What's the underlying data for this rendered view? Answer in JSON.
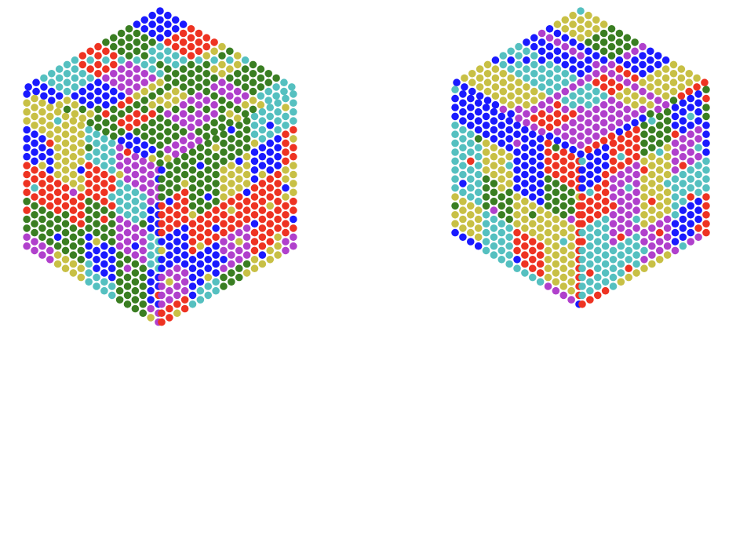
{
  "figures": [
    {
      "name": "left-hexagon-tiling",
      "palette": [
        "#1a1aff",
        "#ee3322",
        "#b040cc",
        "#c8c045",
        "#3a7e22",
        "#55c0c0"
      ],
      "seed": 13
    },
    {
      "name": "right-hexagon-tiling",
      "palette": [
        "#55c0c0",
        "#3a7e22",
        "#c8c045",
        "#ee3322",
        "#b040cc",
        "#1a1aff"
      ],
      "seed": 29
    }
  ]
}
